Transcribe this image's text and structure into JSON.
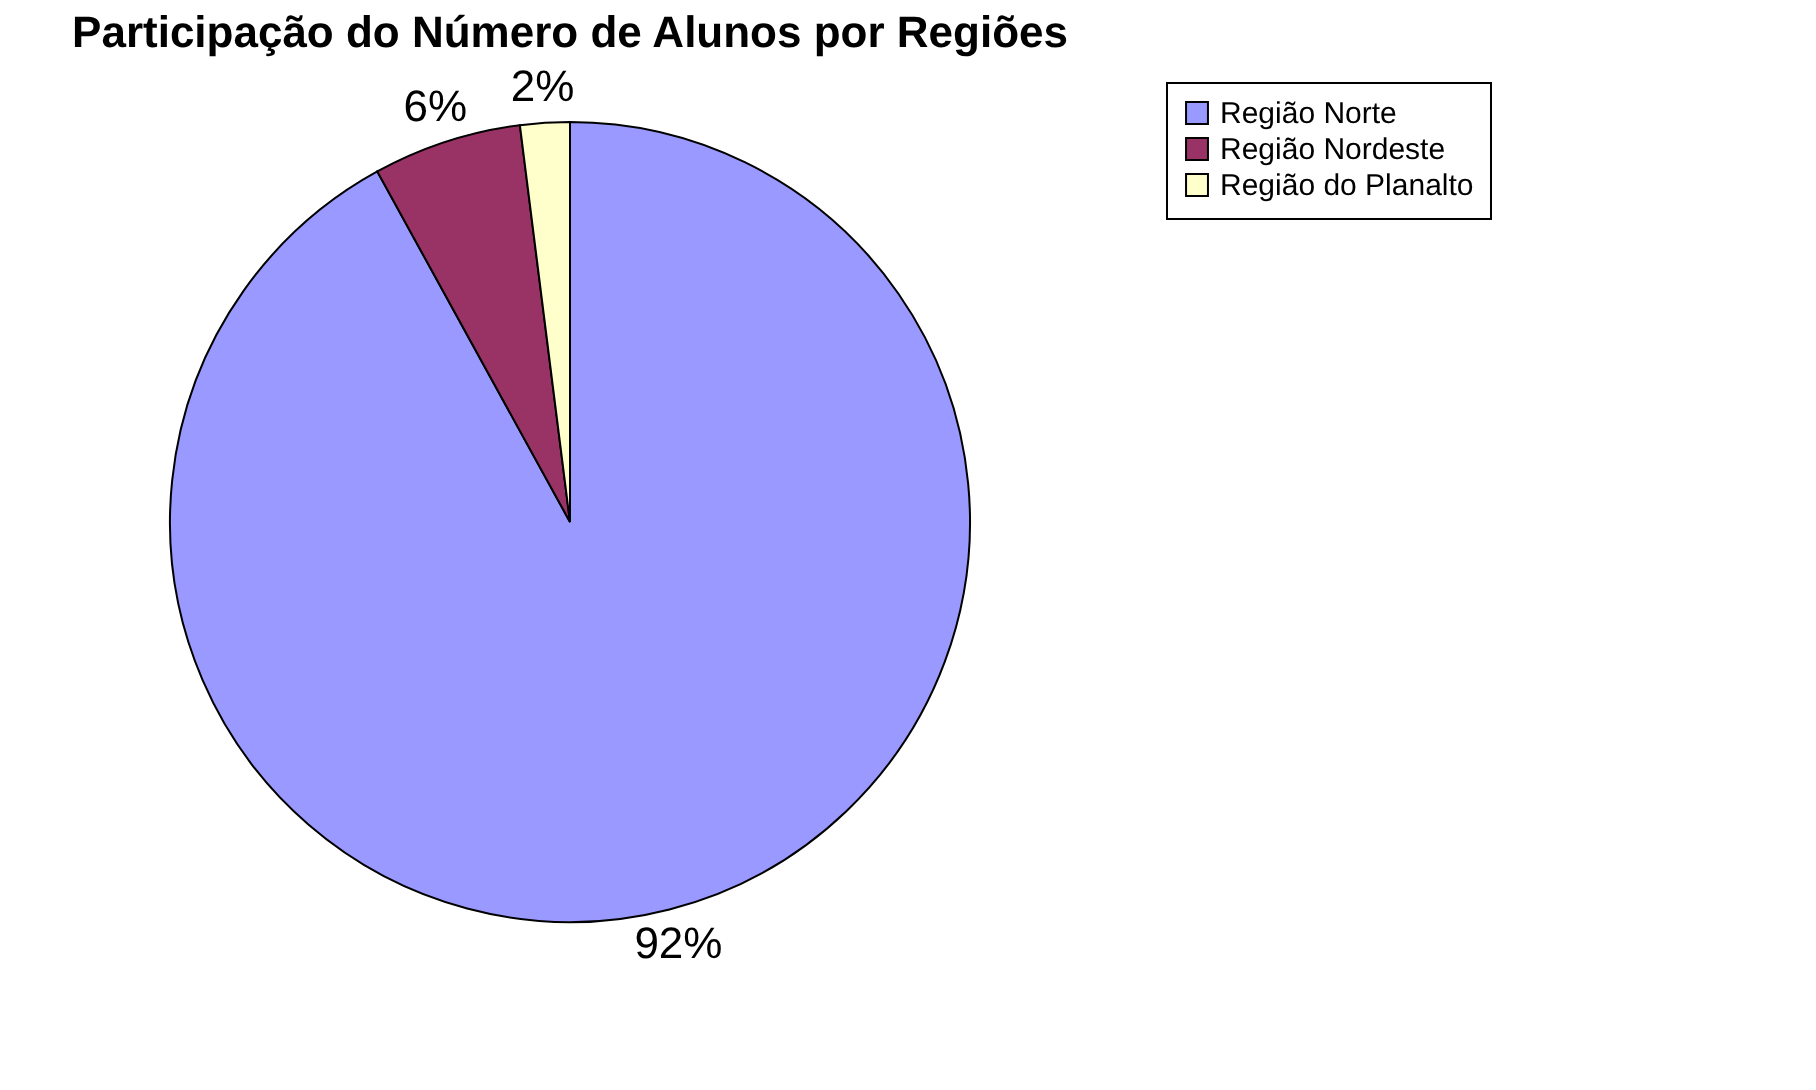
{
  "chart_data": {
    "type": "pie",
    "title": "Participação do Número de Alunos por Regiões",
    "categories": [
      "Região Norte",
      "Região Nordeste",
      "Região do Planalto"
    ],
    "values": [
      92,
      6,
      2
    ],
    "colors": [
      "#9999ff",
      "#993366",
      "#ffffcc"
    ],
    "value_labels": [
      "92%",
      "6%",
      "2%"
    ],
    "legend": "right"
  }
}
